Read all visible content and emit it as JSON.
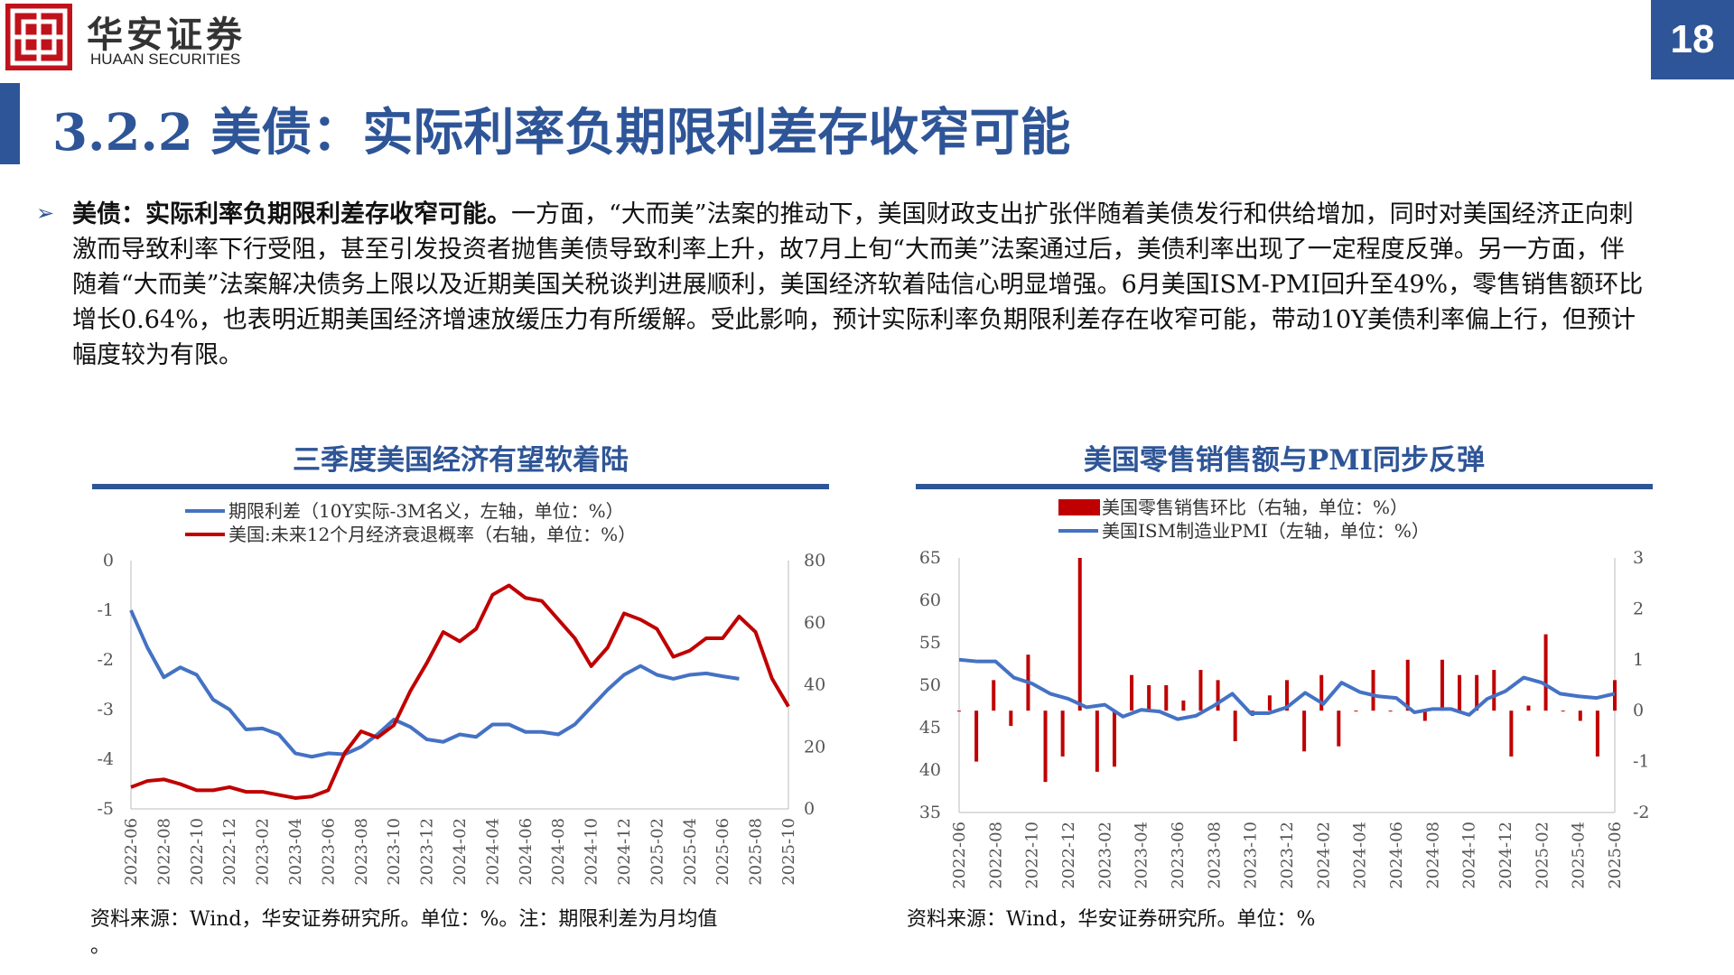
{
  "header": {
    "logo_cn": "华安证券",
    "logo_en": "HUAAN SECURITIES",
    "page_number": "18"
  },
  "page_title": "3.2.2 美债：实际利率负期限利差存收窄可能",
  "body": {
    "lead": "美债：实际利率负期限利差存收窄可能。",
    "text": "一方面，“大而美”法案的推动下，美国财政支出扩张伴随着美债发行和供给增加，同时对美国经济正向刺激而导致利率下行受阻，甚至引发投资者抛售美债导致利率上升，故7月上旬“大而美”法案通过后，美债利率出现了一定程度反弹。另一方面，伴随着“大而美”法案解决债务上限以及近期美国关税谈判进展顺利，美国经济软着陆信心明显增强。6月美国ISM-PMI回升至49%，零售销售额环比增长0.64%，也表明近期美国经济增速放缓压力有所缓解。受此影响，预计实际利率负期限利差存在收窄可能，带动10Y美债利率偏上行，但预计幅度较为有限。"
  },
  "colors": {
    "brand": "#2e5597",
    "red": "#c00000",
    "blue": "#4472c4"
  },
  "chart_data": [
    {
      "type": "line",
      "title": "三季度美国经济有望软着陆",
      "source": "资料来源：Wind，华安证券研究所。单位：%。注：期限利差为月均值",
      "source_tail": "。",
      "left_axis": {
        "ylim": [
          -5,
          0
        ],
        "ticks": [
          "0",
          "-1",
          "-2",
          "-3",
          "-4",
          "-5"
        ]
      },
      "right_axis": {
        "ylim": [
          0,
          80
        ],
        "ticks": [
          "80",
          "60",
          "40",
          "20",
          "0"
        ]
      },
      "x_tick_labels": [
        "2022-06",
        "2022-08",
        "2022-10",
        "2022-12",
        "2023-02",
        "2023-04",
        "2023-06",
        "2023-08",
        "2023-10",
        "2023-12",
        "2024-02",
        "2024-04",
        "2024-06",
        "2024-08",
        "2024-10",
        "2024-12",
        "2025-02",
        "2025-04",
        "2025-06",
        "2025-08",
        "2025-10"
      ],
      "series": [
        {
          "name": "期限利差（10Y实际-3M名义，左轴，单位：%）",
          "axis": "left",
          "color": "#4472c4",
          "values": [
            -1.0,
            -1.75,
            -2.35,
            -2.15,
            -2.3,
            -2.8,
            -3.0,
            -3.4,
            -3.38,
            -3.5,
            -3.88,
            -3.95,
            -3.88,
            -3.9,
            -3.75,
            -3.5,
            -3.2,
            -3.35,
            -3.6,
            -3.65,
            -3.5,
            -3.55,
            -3.3,
            -3.3,
            -3.45,
            -3.45,
            -3.5,
            -3.3,
            -2.95,
            -2.6,
            -2.3,
            -2.12,
            -2.3,
            -2.38,
            -2.3,
            -2.27,
            -2.33,
            -2.38
          ]
        },
        {
          "name": "美国:未来12个月经济衰退概率（右轴，单位：%）",
          "axis": "right",
          "color": "#c00000",
          "values": [
            7,
            9,
            9.5,
            8,
            6,
            6,
            7,
            5.5,
            5.5,
            4.5,
            3.5,
            4,
            6,
            18,
            25,
            23,
            27,
            38,
            47,
            57,
            54,
            58,
            69,
            72,
            68,
            67,
            61,
            55,
            46,
            52,
            63,
            61,
            58,
            49,
            51,
            55,
            55,
            62,
            57,
            42,
            33
          ]
        }
      ]
    },
    {
      "type": "bar+line",
      "title": "美国零售销售额与PMI同步反弹",
      "source": "资料来源：Wind，华安证券研究所。单位：%",
      "left_axis": {
        "ylim": [
          35,
          65
        ],
        "ticks": [
          "65",
          "60",
          "55",
          "50",
          "45",
          "40",
          "35"
        ]
      },
      "right_axis": {
        "ylim": [
          -2,
          3
        ],
        "ticks": [
          "3",
          "2",
          "1",
          "0",
          "-1",
          "-2"
        ]
      },
      "x_tick_labels": [
        "2022-06",
        "2022-08",
        "2022-10",
        "2022-12",
        "2023-02",
        "2023-04",
        "2023-06",
        "2023-08",
        "2023-10",
        "2023-12",
        "2024-02",
        "2024-04",
        "2024-06",
        "2024-08",
        "2024-10",
        "2024-12",
        "2025-02",
        "2025-04",
        "2025-06"
      ],
      "series": [
        {
          "name": "美国零售销售环比（右轴，单位：%）",
          "axis": "right",
          "kind": "bar",
          "color": "#c00000",
          "values": [
            0.0,
            -1.0,
            0.6,
            -0.3,
            1.1,
            -1.4,
            -0.9,
            3.0,
            -1.2,
            -1.1,
            0.7,
            0.5,
            0.5,
            0.2,
            0.8,
            0.6,
            -0.6,
            -0.1,
            0.3,
            0.6,
            -0.8,
            0.7,
            -0.7,
            0.0,
            0.8,
            0.0,
            1.0,
            -0.2,
            1.0,
            0.7,
            0.7,
            0.8,
            -0.9,
            0.1,
            1.5,
            0.0,
            -0.2,
            -0.9,
            0.6
          ]
        },
        {
          "name": "美国ISM制造业PMI（左轴，单位：%）",
          "axis": "left",
          "kind": "line",
          "color": "#4472c4",
          "values": [
            53.0,
            52.8,
            52.8,
            50.9,
            50.2,
            49.0,
            48.4,
            47.4,
            47.7,
            46.3,
            47.1,
            46.9,
            46.0,
            46.4,
            47.6,
            49.0,
            46.7,
            46.7,
            47.4,
            49.1,
            47.8,
            50.3,
            49.2,
            48.7,
            48.5,
            46.8,
            47.2,
            47.2,
            46.5,
            48.4,
            49.3,
            50.9,
            50.3,
            49.0,
            48.7,
            48.5,
            49.0
          ]
        }
      ]
    }
  ]
}
